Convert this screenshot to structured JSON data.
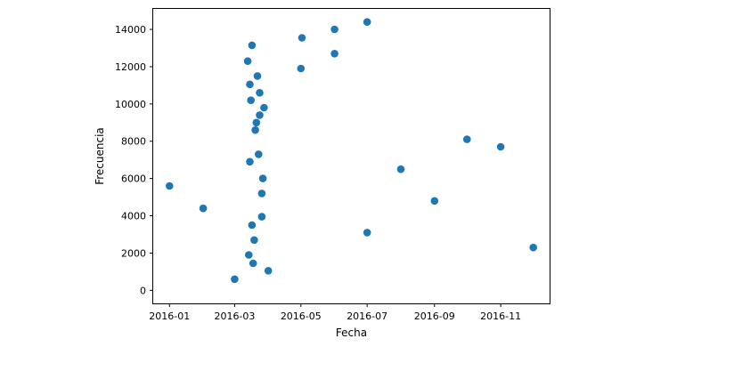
{
  "chart_data": {
    "type": "scatter",
    "title": "",
    "xlabel": "Fecha",
    "ylabel": "Frecuencia",
    "x_axis_type": "date",
    "xlim": [
      "2015-12-17",
      "2016-12-16"
    ],
    "ylim": [
      -700,
      15100
    ],
    "x_ticks": [
      "2016-01-01",
      "2016-03-01",
      "2016-05-01",
      "2016-07-01",
      "2016-09-01",
      "2016-11-01"
    ],
    "x_tick_labels": [
      "2016-01",
      "2016-03",
      "2016-05",
      "2016-07",
      "2016-09",
      "2016-11"
    ],
    "y_ticks": [
      0,
      2000,
      4000,
      6000,
      8000,
      10000,
      12000,
      14000
    ],
    "y_tick_labels": [
      "0",
      "2000",
      "4000",
      "6000",
      "8000",
      "10000",
      "12000",
      "14000"
    ],
    "grid": false,
    "marker_color": "#1f77b4",
    "points": [
      {
        "x": "2016-01-01",
        "y": 5600
      },
      {
        "x": "2016-02-01",
        "y": 4400
      },
      {
        "x": "2016-03-01",
        "y": 600
      },
      {
        "x": "2016-03-13",
        "y": 12300
      },
      {
        "x": "2016-03-14",
        "y": 1900
      },
      {
        "x": "2016-03-15",
        "y": 6900
      },
      {
        "x": "2016-03-15",
        "y": 11050
      },
      {
        "x": "2016-03-16",
        "y": 10200
      },
      {
        "x": "2016-03-17",
        "y": 13150
      },
      {
        "x": "2016-03-17",
        "y": 3500
      },
      {
        "x": "2016-03-18",
        "y": 1450
      },
      {
        "x": "2016-03-19",
        "y": 2700
      },
      {
        "x": "2016-03-20",
        "y": 8600
      },
      {
        "x": "2016-03-21",
        "y": 9000
      },
      {
        "x": "2016-03-22",
        "y": 11500
      },
      {
        "x": "2016-03-23",
        "y": 7300
      },
      {
        "x": "2016-03-24",
        "y": 9400
      },
      {
        "x": "2016-03-24",
        "y": 10600
      },
      {
        "x": "2016-03-26",
        "y": 3950
      },
      {
        "x": "2016-03-26",
        "y": 5200
      },
      {
        "x": "2016-03-27",
        "y": 6000
      },
      {
        "x": "2016-03-28",
        "y": 9800
      },
      {
        "x": "2016-04-01",
        "y": 1050
      },
      {
        "x": "2016-05-01",
        "y": 11900
      },
      {
        "x": "2016-05-02",
        "y": 13550
      },
      {
        "x": "2016-06-01",
        "y": 12700
      },
      {
        "x": "2016-06-01",
        "y": 14000
      },
      {
        "x": "2016-07-01",
        "y": 3100
      },
      {
        "x": "2016-07-01",
        "y": 14400
      },
      {
        "x": "2016-08-01",
        "y": 6500
      },
      {
        "x": "2016-09-01",
        "y": 4800
      },
      {
        "x": "2016-10-01",
        "y": 8100
      },
      {
        "x": "2016-11-01",
        "y": 7700
      },
      {
        "x": "2016-12-01",
        "y": 2300
      }
    ]
  }
}
